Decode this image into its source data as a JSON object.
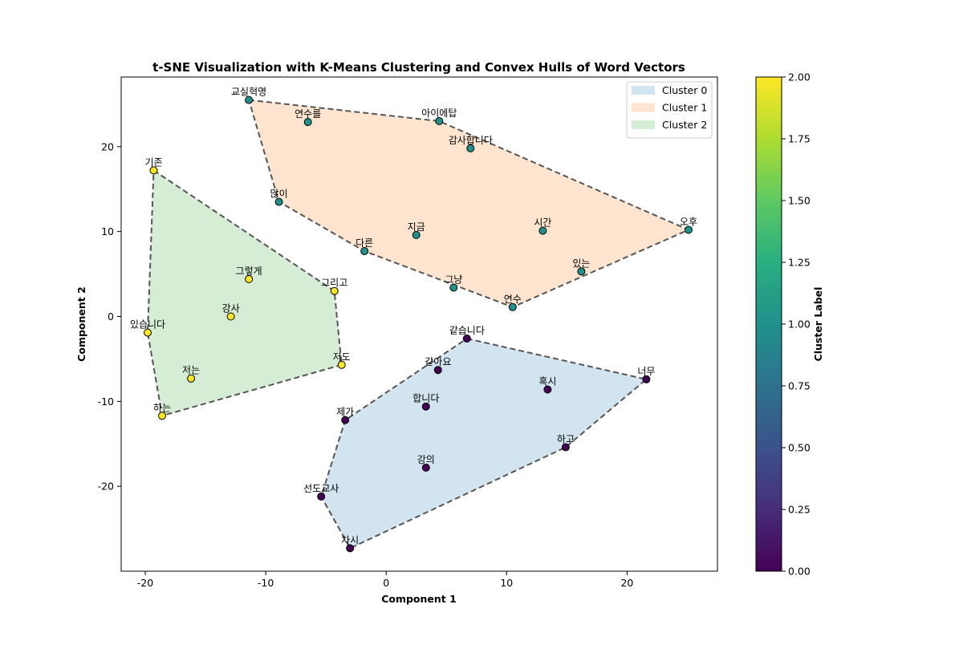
{
  "chart_data": {
    "type": "scatter",
    "title": "t-SNE Visualization with K-Means Clustering and Convex Hulls of Word Vectors",
    "xlabel": "Component 1",
    "ylabel": "Component 2",
    "xlim": [
      -22,
      27.5
    ],
    "ylim": [
      -30,
      28.2
    ],
    "x_ticks": [
      -20,
      -10,
      0,
      10,
      20
    ],
    "y_ticks": [
      -20,
      -10,
      0,
      10,
      20
    ],
    "grid": false,
    "legend_position": "top-right",
    "legend": [
      {
        "label": "Cluster 0",
        "color": "#1f77b4"
      },
      {
        "label": "Cluster 1",
        "color": "#ff7f0e"
      },
      {
        "label": "Cluster 2",
        "color": "#2ca02c"
      }
    ],
    "hull_fill_opacity": 0.2,
    "hull_line_color": "#555555",
    "cluster_point_colors": [
      "#440154",
      "#21918c",
      "#fde725"
    ],
    "points": [
      {
        "label": "교실혁명",
        "x": -11.4,
        "y": 25.5,
        "cluster": 1
      },
      {
        "label": "연수를",
        "x": -6.5,
        "y": 22.9,
        "cluster": 1
      },
      {
        "label": "아이에탑",
        "x": 4.4,
        "y": 23.0,
        "cluster": 1
      },
      {
        "label": "감사합니다",
        "x": 7.0,
        "y": 19.8,
        "cluster": 1
      },
      {
        "label": "많이",
        "x": -8.9,
        "y": 13.5,
        "cluster": 1
      },
      {
        "label": "지금",
        "x": 2.5,
        "y": 9.6,
        "cluster": 1
      },
      {
        "label": "시간",
        "x": 13.0,
        "y": 10.1,
        "cluster": 1
      },
      {
        "label": "오후",
        "x": 25.1,
        "y": 10.2,
        "cluster": 1
      },
      {
        "label": "다른",
        "x": -1.8,
        "y": 7.7,
        "cluster": 1
      },
      {
        "label": "있는",
        "x": 16.2,
        "y": 5.3,
        "cluster": 1
      },
      {
        "label": "그냥",
        "x": 5.6,
        "y": 3.4,
        "cluster": 1
      },
      {
        "label": "연수",
        "x": 10.5,
        "y": 1.1,
        "cluster": 1
      },
      {
        "label": "기존",
        "x": -19.3,
        "y": 17.2,
        "cluster": 2
      },
      {
        "label": "그렇게",
        "x": -11.4,
        "y": 4.4,
        "cluster": 2
      },
      {
        "label": "그리고",
        "x": -4.3,
        "y": 3.0,
        "cluster": 2
      },
      {
        "label": "강사",
        "x": -12.9,
        "y": 0.0,
        "cluster": 2
      },
      {
        "label": "있습니다",
        "x": -19.8,
        "y": -1.9,
        "cluster": 2
      },
      {
        "label": "저도",
        "x": -3.7,
        "y": -5.7,
        "cluster": 2
      },
      {
        "label": "저는",
        "x": -16.2,
        "y": -7.3,
        "cluster": 2
      },
      {
        "label": "하는",
        "x": -18.6,
        "y": -11.7,
        "cluster": 2
      },
      {
        "label": "같습니다",
        "x": 6.7,
        "y": -2.6,
        "cluster": 0
      },
      {
        "label": "같아요",
        "x": 4.3,
        "y": -6.3,
        "cluster": 0
      },
      {
        "label": "너무",
        "x": 21.6,
        "y": -7.4,
        "cluster": 0
      },
      {
        "label": "혹시",
        "x": 13.4,
        "y": -8.6,
        "cluster": 0
      },
      {
        "label": "합니다",
        "x": 3.3,
        "y": -10.6,
        "cluster": 0
      },
      {
        "label": "제가",
        "x": -3.4,
        "y": -12.2,
        "cluster": 0
      },
      {
        "label": "하고",
        "x": 14.9,
        "y": -15.4,
        "cluster": 0
      },
      {
        "label": "강의",
        "x": 3.3,
        "y": -17.8,
        "cluster": 0
      },
      {
        "label": "선도교사",
        "x": -5.4,
        "y": -21.2,
        "cluster": 0
      },
      {
        "label": "차시",
        "x": -3.0,
        "y": -27.3,
        "cluster": 0
      }
    ],
    "hulls": [
      {
        "cluster": 0,
        "labels": [
          "같습니다",
          "너무",
          "하고",
          "차시",
          "선도교사",
          "제가"
        ]
      },
      {
        "cluster": 1,
        "labels": [
          "교실혁명",
          "아이에탑",
          "오후",
          "연수",
          "다른",
          "많이"
        ]
      },
      {
        "cluster": 2,
        "labels": [
          "기존",
          "그리고",
          "저도",
          "하는",
          "있습니다"
        ]
      }
    ],
    "colorbar": {
      "label": "Cluster Label",
      "range": [
        0,
        2
      ],
      "ticks": [
        "0.00",
        "0.25",
        "0.50",
        "0.75",
        "1.00",
        "1.25",
        "1.50",
        "1.75",
        "2.00"
      ]
    }
  }
}
